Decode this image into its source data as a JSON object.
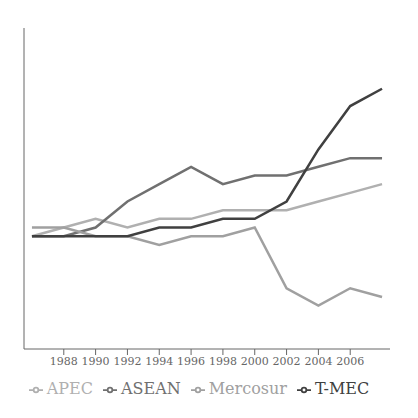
{
  "chart_data": {
    "type": "line",
    "x": [
      1986,
      1988,
      1990,
      1992,
      1994,
      1996,
      1998,
      2000,
      2002,
      2004,
      2006,
      2008
    ],
    "series": [
      {
        "name": "APEC",
        "color": "#b0b0b0",
        "values": [
          0.18,
          0.19,
          0.2,
          0.19,
          0.2,
          0.2,
          0.21,
          0.21,
          0.21,
          0.22,
          0.23,
          0.24
        ]
      },
      {
        "name": "ASEAN",
        "color": "#707070",
        "values": [
          0.18,
          0.18,
          0.19,
          0.22,
          0.24,
          0.26,
          0.24,
          0.25,
          0.25,
          0.26,
          0.27,
          0.27
        ]
      },
      {
        "name": "Mercosur",
        "color": "#a0a0a0",
        "values": [
          0.19,
          0.19,
          0.18,
          0.18,
          0.17,
          0.18,
          0.18,
          0.19,
          0.12,
          0.1,
          0.12,
          0.11
        ]
      },
      {
        "name": "T-MEC",
        "color": "#404040",
        "values": [
          0.18,
          0.18,
          0.18,
          0.18,
          0.19,
          0.19,
          0.2,
          0.2,
          0.22,
          0.28,
          0.33,
          0.35
        ]
      }
    ],
    "xlim": [
      1985.5,
      2008.5
    ],
    "xticks": [
      1988,
      1990,
      1992,
      1994,
      1996,
      1998,
      2000,
      2002,
      2004,
      2006
    ],
    "ylim": [
      0.05,
      0.42
    ],
    "grid": false,
    "legend": "bottom",
    "tick_labels": "x"
  }
}
